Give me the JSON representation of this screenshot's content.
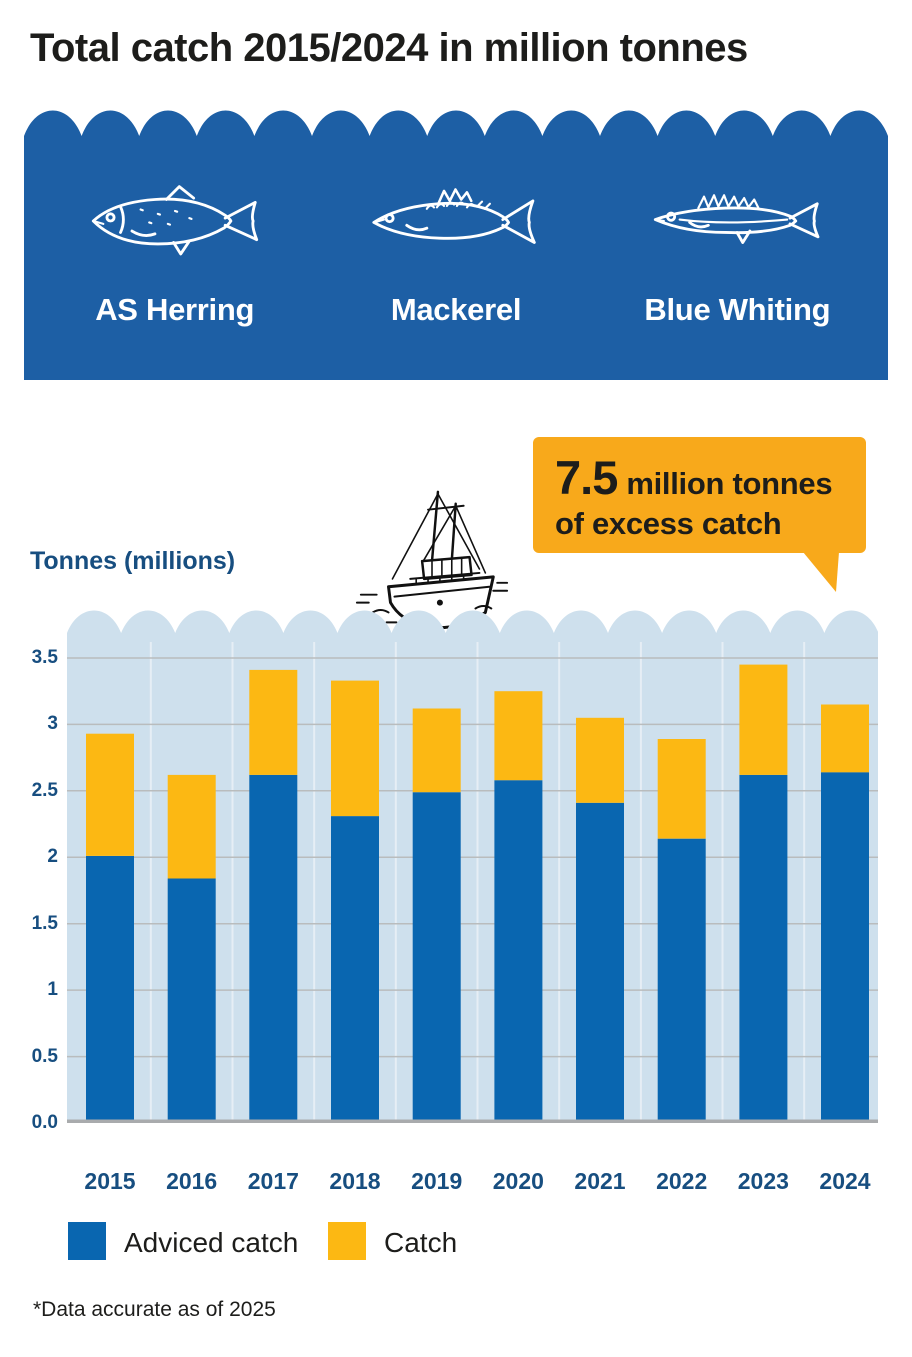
{
  "title": "Total catch 2015/2024 in million tonnes",
  "species_banner": {
    "background_color": "#1d5fa5",
    "items": [
      {
        "label": "AS Herring",
        "icon": "herring-fish-icon"
      },
      {
        "label": "Mackerel",
        "icon": "mackerel-fish-icon"
      },
      {
        "label": "Blue Whiting",
        "icon": "blue-whiting-fish-icon"
      }
    ]
  },
  "callout": {
    "background_color": "#f8a91b",
    "value": "7.5",
    "value_suffix": "million tonnes",
    "line2": "of excess catch"
  },
  "axis_title": "Tonnes (millions)",
  "chart_data": {
    "type": "bar",
    "stacked": true,
    "categories": [
      "2015",
      "2016",
      "2017",
      "2018",
      "2019",
      "2020",
      "2021",
      "2022",
      "2023",
      "2024"
    ],
    "series": [
      {
        "name": "Adviced catch",
        "color": "#0966b0",
        "values": [
          2.01,
          1.84,
          2.62,
          2.31,
          2.49,
          2.58,
          2.41,
          2.14,
          2.62,
          2.64
        ]
      },
      {
        "name": "Catch",
        "color": "#fcb813",
        "values": [
          0.92,
          0.78,
          0.79,
          1.02,
          0.63,
          0.67,
          0.64,
          0.75,
          0.83,
          0.51
        ]
      }
    ],
    "stack_totals": [
      2.93,
      2.62,
      3.41,
      3.33,
      3.12,
      3.25,
      3.05,
      2.89,
      3.45,
      3.15
    ],
    "ylabel": "Tonnes (millions)",
    "ylim": [
      0,
      3.7
    ],
    "yticks": [
      {
        "value": 0,
        "label": "0.0"
      },
      {
        "value": 0.5,
        "label": "0.5"
      },
      {
        "value": 1,
        "label": "1"
      },
      {
        "value": 1.5,
        "label": "1.5"
      },
      {
        "value": 2,
        "label": "2"
      },
      {
        "value": 2.5,
        "label": "2.5"
      },
      {
        "value": 3,
        "label": "3"
      },
      {
        "value": 3.5,
        "label": "3.5"
      }
    ],
    "grid": true,
    "plot_background": "#cee0ed",
    "gridline_color": "#b9bcbd",
    "column_separator_color": "#e6eef5",
    "axis_line_color": "#a9abad",
    "legend_position": "bottom-left"
  },
  "legend": {
    "items": [
      {
        "label": "Adviced catch",
        "color": "#0966b0"
      },
      {
        "label": "Catch",
        "color": "#fcb813"
      }
    ]
  },
  "footnote": "*Data accurate as of 2025"
}
